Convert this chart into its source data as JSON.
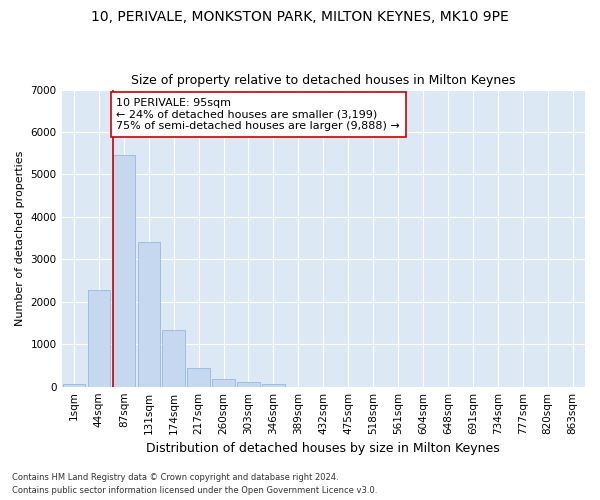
{
  "title1": "10, PERIVALE, MONKSTON PARK, MILTON KEYNES, MK10 9PE",
  "title2": "Size of property relative to detached houses in Milton Keynes",
  "xlabel": "Distribution of detached houses by size in Milton Keynes",
  "ylabel": "Number of detached properties",
  "footnote1": "Contains HM Land Registry data © Crown copyright and database right 2024.",
  "footnote2": "Contains public sector information licensed under the Open Government Licence v3.0.",
  "bar_labels": [
    "1sqm",
    "44sqm",
    "87sqm",
    "131sqm",
    "174sqm",
    "217sqm",
    "260sqm",
    "303sqm",
    "346sqm",
    "389sqm",
    "432sqm",
    "475sqm",
    "518sqm",
    "561sqm",
    "604sqm",
    "648sqm",
    "691sqm",
    "734sqm",
    "777sqm",
    "820sqm",
    "863sqm"
  ],
  "bar_values": [
    70,
    2270,
    5450,
    3400,
    1330,
    450,
    170,
    100,
    60,
    0,
    0,
    0,
    0,
    0,
    0,
    0,
    0,
    0,
    0,
    0,
    0
  ],
  "bar_color": "#c5d8f0",
  "bar_edge_color": "#8cb0d8",
  "vline_x": 2,
  "vline_color": "#cc0000",
  "annotation_box_text": "10 PERIVALE: 95sqm\n← 24% of detached houses are smaller (3,199)\n75% of semi-detached houses are larger (9,888) →",
  "annotation_box_color": "#ffffff",
  "annotation_box_edge": "#cc0000",
  "ylim": [
    0,
    7000
  ],
  "yticks": [
    0,
    1000,
    2000,
    3000,
    4000,
    5000,
    6000,
    7000
  ],
  "fig_bg_color": "#ffffff",
  "plot_bg_color": "#dce9f5",
  "grid_color": "#ffffff",
  "title1_fontsize": 10,
  "title2_fontsize": 9,
  "xlabel_fontsize": 9,
  "ylabel_fontsize": 8,
  "tick_fontsize": 7.5,
  "annotation_fontsize": 8
}
